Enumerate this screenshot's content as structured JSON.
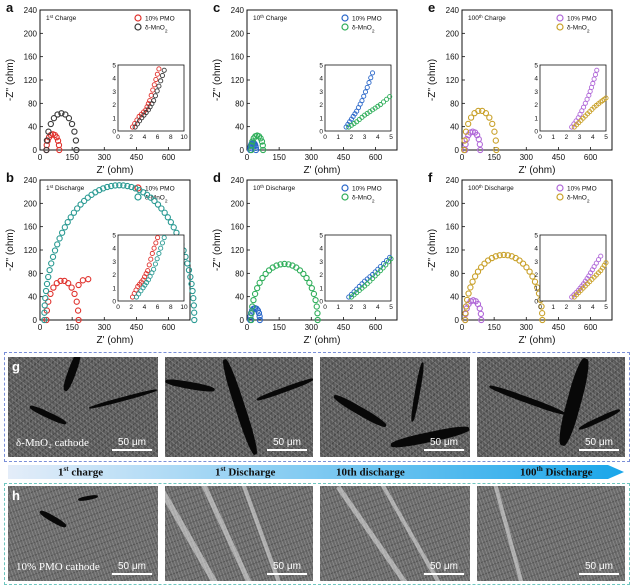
{
  "chart_data": [
    {
      "letter": "a",
      "title": "1st Charge",
      "title_parts": [
        "1",
        "st",
        " Charge"
      ],
      "type": "scatter",
      "xlabel": "Z' (ohm)",
      "ylabel": "-Z'' (ohm)",
      "xlim": [
        0,
        700
      ],
      "ylim": [
        0,
        240
      ],
      "xticks": [
        "0",
        "150",
        "300",
        "450",
        "600"
      ],
      "yticks": [
        "0",
        "40",
        "80",
        "120",
        "160",
        "200",
        "240"
      ],
      "legend": [
        "10% PMO",
        "δ-MnO2"
      ],
      "legend_colors": [
        "#e0322d",
        "#3a3a3a"
      ],
      "series": [
        {
          "name": "10% PMO",
          "arc": [
            30,
            90
          ],
          "tail": []
        },
        {
          "name": "δ-MnO2",
          "arc": [
            30,
            170
          ],
          "tail": []
        }
      ],
      "inset": {
        "xlim": [
          0,
          10
        ],
        "ylim": [
          0,
          5
        ],
        "xticks": [
          "0",
          "2",
          "4",
          "6",
          "8",
          "10"
        ],
        "yticks": [
          "0",
          "1",
          "2",
          "3",
          "4",
          "5"
        ],
        "series": [
          {
            "x": [
              2.2,
              3.2,
              4.2,
              4.8,
              5.5,
              6.2
            ],
            "y": [
              0.3,
              1.1,
              1.6,
              2.3,
              3.5,
              4.7
            ]
          },
          {
            "x": [
              2.6,
              3.6,
              4.6,
              5.4,
              6.2,
              7.0
            ],
            "y": [
              0.3,
              1.0,
              1.6,
              2.3,
              3.4,
              4.6
            ]
          }
        ]
      }
    },
    {
      "letter": "c",
      "title": "10th Charge",
      "title_parts": [
        "10",
        "th",
        " Charge"
      ],
      "type": "scatter",
      "xlabel": "Z' (ohm)",
      "ylabel": "-Z'' (ohm)",
      "xlim": [
        0,
        700
      ],
      "ylim": [
        0,
        240
      ],
      "xticks": [
        "0",
        "150",
        "300",
        "450",
        "600"
      ],
      "yticks": [
        "0",
        "40",
        "80",
        "120",
        "160",
        "200",
        "240"
      ],
      "legend": [
        "10% PMO",
        "δ-MnO2"
      ],
      "legend_colors": [
        "#2a67c9",
        "#2fae5a"
      ],
      "series": [
        {
          "name": "10% PMO",
          "arc": [
            15,
            42
          ],
          "tail": []
        },
        {
          "name": "δ-MnO2",
          "arc": [
            20,
            75
          ],
          "tail": []
        }
      ],
      "inset": {
        "xlim": [
          0,
          5
        ],
        "ylim": [
          0,
          5
        ],
        "xticks": [
          "0",
          "1",
          "2",
          "3",
          "4",
          "5"
        ],
        "yticks": [
          "0",
          "1",
          "2",
          "3",
          "4",
          "5"
        ],
        "series": [
          {
            "x": [
              1.6,
              2.0,
              2.4,
              2.8,
              3.2,
              3.6
            ],
            "y": [
              0.3,
              0.9,
              1.5,
              2.3,
              3.3,
              4.4
            ]
          },
          {
            "x": [
              1.8,
              2.4,
              3.0,
              3.6,
              4.2,
              4.9
            ],
            "y": [
              0.3,
              0.7,
              1.2,
              1.6,
              2.0,
              2.6
            ]
          }
        ]
      }
    },
    {
      "letter": "e",
      "title": "100th Charge",
      "title_parts": [
        "100",
        "th",
        " Charge"
      ],
      "type": "scatter",
      "xlabel": "Z' (ohm)",
      "ylabel": "-Z'' (ohm)",
      "xlim": [
        0,
        700
      ],
      "ylim": [
        0,
        240
      ],
      "xticks": [
        "0",
        "150",
        "300",
        "450",
        "600"
      ],
      "yticks": [
        "0",
        "40",
        "80",
        "120",
        "160",
        "200",
        "240"
      ],
      "legend": [
        "10% PMO",
        "δ-MnO2"
      ],
      "legend_colors": [
        "#b068d8",
        "#c9a12a"
      ],
      "series": [
        {
          "name": "10% PMO",
          "arc": [
            15,
            85
          ],
          "tail": []
        },
        {
          "name": "δ-MnO2",
          "arc": [
            10,
            160
          ],
          "tail": []
        }
      ],
      "inset": {
        "xlim": [
          0,
          5
        ],
        "ylim": [
          0,
          5
        ],
        "xticks": [
          "0",
          "1",
          "2",
          "3",
          "4",
          "5"
        ],
        "yticks": [
          "0",
          "1",
          "2",
          "3",
          "4",
          "5"
        ],
        "series": [
          {
            "x": [
              2.4,
              2.9,
              3.3,
              3.7,
              4.0,
              4.3
            ],
            "y": [
              0.3,
              1.0,
              1.8,
              2.7,
              3.6,
              4.6
            ]
          },
          {
            "x": [
              2.6,
              3.1,
              3.6,
              4.1,
              4.6,
              5.0
            ],
            "y": [
              0.3,
              0.8,
              1.3,
              1.8,
              2.2,
              2.5
            ]
          }
        ]
      }
    },
    {
      "letter": "b",
      "title": "1st Discharge",
      "title_parts": [
        "1",
        "st",
        " Discharge"
      ],
      "type": "scatter",
      "xlabel": "Z' (ohm)",
      "ylabel": "-Z'' (ohm)",
      "xlim": [
        0,
        700
      ],
      "ylim": [
        0,
        240
      ],
      "xticks": [
        "0",
        "150",
        "300",
        "450",
        "600"
      ],
      "yticks": [
        "0",
        "40",
        "80",
        "120",
        "160",
        "200",
        "240"
      ],
      "legend": [
        "10% PMO",
        "δ-MnO2"
      ],
      "legend_colors": [
        "#e0322d",
        "#2a9a93"
      ],
      "series": [
        {
          "name": "10% PMO",
          "arc": [
            30,
            180
          ],
          "tail": [
            [
              180,
              60
            ],
            [
              200,
              68
            ],
            [
              225,
              70
            ]
          ]
        },
        {
          "name": "δ-MnO2",
          "arc": [
            20,
            720
          ],
          "tail": []
        }
      ],
      "inset": {
        "xlim": [
          0,
          10
        ],
        "ylim": [
          0,
          5
        ],
        "xticks": [
          "0",
          "2",
          "4",
          "6",
          "8",
          "10"
        ],
        "yticks": [
          "0",
          "1",
          "2",
          "3",
          "4",
          "5"
        ],
        "series": [
          {
            "x": [
              2.2,
              3.0,
              3.8,
              4.5,
              5.2,
              6.0
            ],
            "y": [
              0.3,
              1.1,
              1.6,
              2.3,
              3.6,
              4.8
            ]
          },
          {
            "x": [
              2.8,
              3.8,
              4.6,
              5.4,
              6.2,
              7.0
            ],
            "y": [
              0.3,
              1.0,
              1.6,
              2.4,
              3.6,
              4.8
            ]
          }
        ]
      }
    },
    {
      "letter": "d",
      "title": "10th Discharge",
      "title_parts": [
        "10",
        "th",
        " Discharge"
      ],
      "type": "scatter",
      "xlabel": "Z' (ohm)",
      "ylabel": "-Z'' (ohm)",
      "xlim": [
        0,
        700
      ],
      "ylim": [
        0,
        240
      ],
      "xticks": [
        "0",
        "150",
        "300",
        "450",
        "600"
      ],
      "yticks": [
        "0",
        "40",
        "80",
        "120",
        "160",
        "200",
        "240"
      ],
      "legend": [
        "10% PMO",
        "δ-MnO2"
      ],
      "legend_colors": [
        "#2a67c9",
        "#2fae5a"
      ],
      "series": [
        {
          "name": "10% PMO",
          "arc": [
            15,
            60
          ],
          "tail": []
        },
        {
          "name": "δ-MnO2",
          "arc": [
            20,
            330
          ],
          "tail": []
        }
      ],
      "inset": {
        "xlim": [
          0,
          5
        ],
        "ylim": [
          0,
          5
        ],
        "xticks": [
          "0",
          "1",
          "2",
          "3",
          "4",
          "5"
        ],
        "yticks": [
          "0",
          "1",
          "2",
          "3",
          "4",
          "5"
        ],
        "series": [
          {
            "x": [
              1.8,
              2.4,
              3.0,
              3.6,
              4.2,
              4.9
            ],
            "y": [
              0.3,
              0.9,
              1.5,
              2.0,
              2.6,
              3.3
            ]
          },
          {
            "x": [
              2.0,
              2.6,
              3.2,
              3.8,
              4.4,
              5.0
            ],
            "y": [
              0.3,
              0.8,
              1.3,
              1.9,
              2.5,
              3.2
            ]
          }
        ]
      }
    },
    {
      "letter": "f",
      "title": "100th Discharge",
      "title_parts": [
        "100",
        "th",
        " Discharge"
      ],
      "type": "scatter",
      "xlabel": "Z' (ohm)",
      "ylabel": "-Z'' (ohm)",
      "xlim": [
        0,
        700
      ],
      "ylim": [
        0,
        240
      ],
      "xticks": [
        "0",
        "150",
        "300",
        "450",
        "600"
      ],
      "yticks": [
        "0",
        "40",
        "80",
        "120",
        "160",
        "200",
        "240"
      ],
      "legend": [
        "10% PMO",
        "δ-MnO2"
      ],
      "legend_colors": [
        "#b068d8",
        "#c9a12a"
      ],
      "series": [
        {
          "name": "10% PMO",
          "arc": [
            15,
            90
          ],
          "tail": []
        },
        {
          "name": "δ-MnO2",
          "arc": [
            15,
            375
          ],
          "tail": []
        }
      ],
      "inset": {
        "xlim": [
          0,
          5
        ],
        "ylim": [
          0,
          5
        ],
        "xticks": [
          "0",
          "1",
          "2",
          "3",
          "4",
          "5"
        ],
        "yticks": [
          "0",
          "1",
          "2",
          "3",
          "4",
          "5"
        ],
        "series": [
          {
            "x": [
              2.4,
              2.9,
              3.3,
              3.7,
              4.1,
              4.6
            ],
            "y": [
              0.3,
              0.8,
              1.3,
              1.9,
              2.6,
              3.4
            ]
          },
          {
            "x": [
              2.6,
              3.1,
              3.6,
              4.1,
              4.6,
              5.0
            ],
            "y": [
              0.3,
              0.8,
              1.3,
              1.8,
              2.3,
              2.9
            ]
          }
        ]
      }
    }
  ],
  "sem": {
    "row_g": {
      "letter": "g",
      "cathode_label": "δ-MnO₂ cathode",
      "scale": [
        "50 μm",
        "50 μm",
        "50 μm",
        "50 μm"
      ]
    },
    "row_h": {
      "letter": "h",
      "cathode_label": "10% PMO cathode",
      "scale": [
        "50 μm",
        "50 μm",
        "50 μm",
        "50 μm"
      ]
    },
    "stages": [
      {
        "num": "1",
        "sup": "st",
        "rest": " charge"
      },
      {
        "num": "1",
        "sup": "st",
        "rest": " Discharge"
      },
      {
        "num": "10th",
        "sup": "",
        "rest": " discharge"
      },
      {
        "num": "100",
        "sup": "th",
        "rest": " Discharge"
      }
    ],
    "arrow_colors": [
      "#dde8f8",
      "#1ea6e8"
    ]
  }
}
